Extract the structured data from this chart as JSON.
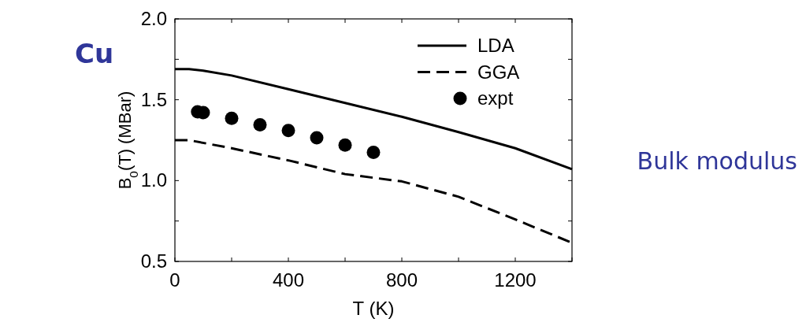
{
  "chart_data": {
    "type": "line",
    "xlabel": "T (K)",
    "ylabel": "B$_{0}$(T) (MBar)",
    "annotations": [
      "Cu",
      "Bulk modulus"
    ],
    "xlim": [
      0,
      1400
    ],
    "ylim": [
      0.5,
      2.0
    ],
    "xticks": [
      0,
      {
        "value": 200,
        "label": null
      },
      400,
      {
        "value": 600,
        "label": null
      },
      800,
      {
        "value": 1000,
        "label": null
      },
      1200,
      {
        "value": 1400,
        "label": null
      }
    ],
    "yticks": [
      0.5,
      {
        "value": 0.75,
        "label": null
      },
      {
        "value": 1,
        "label": "1.0"
      },
      {
        "value": 1.25,
        "label": null
      },
      1.5,
      {
        "value": 1.75,
        "label": null
      },
      {
        "value": 2,
        "label": "2.0"
      }
    ],
    "legend": "top right",
    "grid": false,
    "series": [
      {
        "name": "LDA",
        "color": "#000000",
        "line_style": "solid",
        "marker": "none",
        "x": [
          0,
          50,
          100,
          200,
          400,
          600,
          800,
          1000,
          1200,
          1400
        ],
        "values": [
          1.69,
          1.69,
          1.68,
          1.65,
          1.565,
          1.48,
          1.395,
          1.3,
          1.2,
          1.07
        ]
      },
      {
        "name": "GGA",
        "color": "#000000",
        "line_style": "dashed",
        "marker": "none",
        "x": [
          0,
          50,
          200,
          400,
          600,
          800,
          1000,
          1200,
          1400
        ],
        "values": [
          1.25,
          1.25,
          1.2,
          1.125,
          1.04,
          0.995,
          0.9,
          0.76,
          0.615
        ]
      },
      {
        "name": "expt",
        "type": "scatter",
        "color": "#000000",
        "marker": "circle",
        "x": [
          80,
          100,
          200,
          300,
          400,
          500,
          600,
          700
        ],
        "values": [
          1.425,
          1.42,
          1.385,
          1.345,
          1.31,
          1.265,
          1.22,
          1.175
        ]
      }
    ]
  }
}
